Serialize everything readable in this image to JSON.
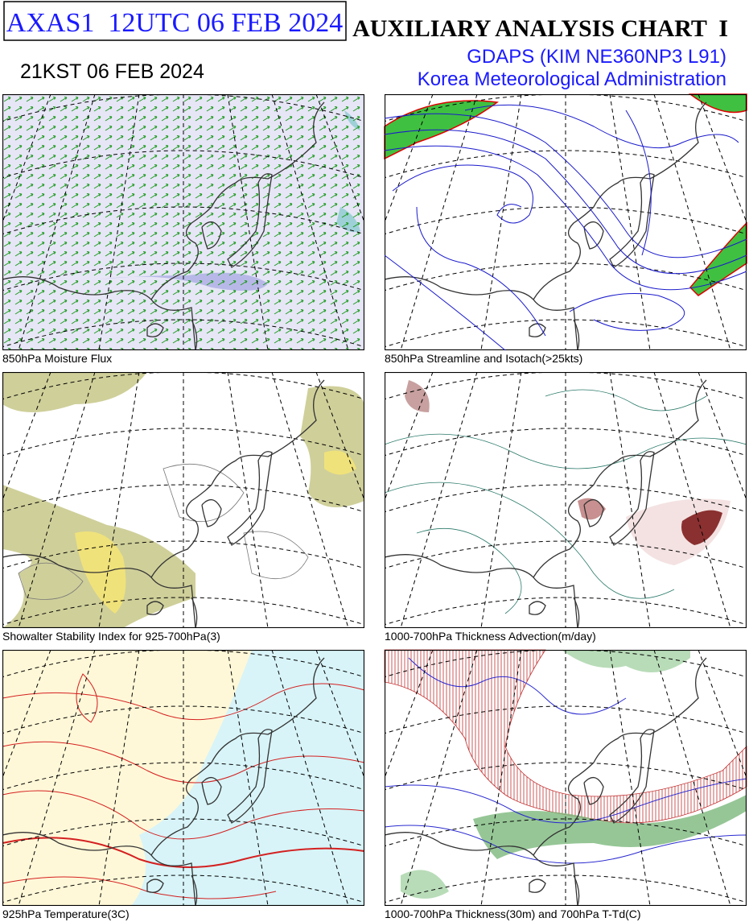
{
  "header": {
    "code": "AXAS1  12UTC 06 FEB 2024",
    "local_time": "21KST 06 FEB 2024",
    "title": "AUXILIARY ANALYSIS CHART  I",
    "model": "GDAPS (KIM NE360NP3 L91)",
    "agency": "Korea Meteorological Administration"
  },
  "panels": [
    {
      "caption": "850hPa Moisture Flux"
    },
    {
      "caption": "850hPa Streamline and Isotach(>25kts)"
    },
    {
      "caption": "Showalter Stability Index for 925-700hPa(3)"
    },
    {
      "caption": "1000-700hPa Thickness Advection(m/day)"
    },
    {
      "caption": "925hPa Temperature(3C)"
    },
    {
      "caption": "1000-700hPa Thickness(30m) and 700hPa T-Td(C)"
    }
  ]
}
